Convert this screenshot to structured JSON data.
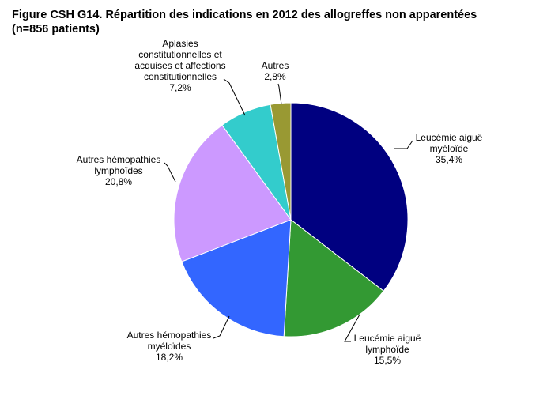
{
  "figure": {
    "title_line1": "Figure CSH G14. Répartition des indications en 2012 des allogreffes non apparentées",
    "title_line2": "(n=856 patients)"
  },
  "chart_data": {
    "type": "pie",
    "title": "Figure CSH G14. Répartition des indications en 2012 des allogreffes non apparentées (n=856 patients)",
    "unit": "%",
    "slices": [
      {
        "label_lines": [
          "Leucémie aiguë",
          "myéloïde"
        ],
        "value": 35.4,
        "value_text": "35,4%",
        "color": "#000080"
      },
      {
        "label_lines": [
          "Leucémie aiguë",
          "lymphoïde"
        ],
        "value": 15.5,
        "value_text": "15,5%",
        "color": "#339933"
      },
      {
        "label_lines": [
          "Autres hémopathies",
          "myéloïdes"
        ],
        "value": 18.2,
        "value_text": "18,2%",
        "color": "#3366FF"
      },
      {
        "label_lines": [
          "Autres hémopathies",
          "lymphoïdes"
        ],
        "value": 20.8,
        "value_text": "20,8%",
        "color": "#CC99FF"
      },
      {
        "label_lines": [
          "Aplasies",
          "constitutionnelles et",
          "acquises et affections",
          "constitutionnelles"
        ],
        "value": 7.2,
        "value_text": "7,2%",
        "color": "#33CCCC"
      },
      {
        "label_lines": [
          "Autres"
        ],
        "value": 2.8,
        "value_text": "2,8%",
        "color": "#999933"
      }
    ]
  }
}
